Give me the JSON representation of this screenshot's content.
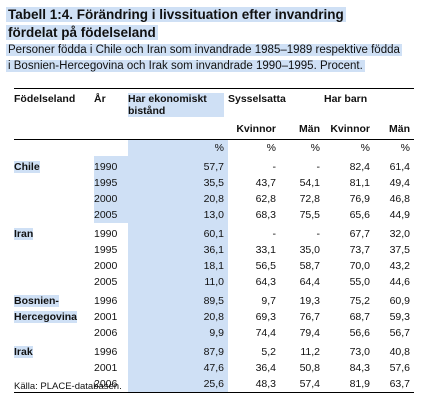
{
  "title_line1": "Tabell 1:4. Förändring i livssituation efter invandring",
  "title_line2": "fördelat på födelseland",
  "subtitle_line1": "Personer födda i Chile och Iran som invandrade 1985–1989 respektive födda",
  "subtitle_line2": "i Bosnien-Hercegovina och Irak som invandrade 1990–1995. Procent.",
  "headers": {
    "country": "Födelseland",
    "year": "År",
    "econ": "Har ekonomiskt bistånd",
    "employed": "Sysselsatta",
    "children": "Har barn",
    "women": "Kvinnor",
    "men": "Män",
    "pct": "%"
  },
  "groups": [
    {
      "name": "Chile",
      "highlight": true,
      "rows": [
        {
          "year": "1990",
          "econ": "57,7",
          "emp_w": "-",
          "emp_m": "-",
          "ch_w": "82,4",
          "ch_m": "61,4"
        },
        {
          "year": "1995",
          "econ": "35,5",
          "emp_w": "43,7",
          "emp_m": "54,1",
          "ch_w": "81,1",
          "ch_m": "49,4"
        },
        {
          "year": "2000",
          "econ": "20,8",
          "emp_w": "62,8",
          "emp_m": "72,8",
          "ch_w": "76,9",
          "ch_m": "46,8"
        },
        {
          "year": "2005",
          "econ": "13,0",
          "emp_w": "68,3",
          "emp_m": "75,5",
          "ch_w": "65,6",
          "ch_m": "44,9"
        }
      ]
    },
    {
      "name": "Iran",
      "highlight": false,
      "rows": [
        {
          "year": "1990",
          "econ": "60,1",
          "emp_w": "-",
          "emp_m": "-",
          "ch_w": "67,7",
          "ch_m": "32,0"
        },
        {
          "year": "1995",
          "econ": "36,1",
          "emp_w": "33,1",
          "emp_m": "35,0",
          "ch_w": "73,7",
          "ch_m": "37,5"
        },
        {
          "year": "2000",
          "econ": "18,1",
          "emp_w": "56,5",
          "emp_m": "58,7",
          "ch_w": "70,0",
          "ch_m": "43,2"
        },
        {
          "year": "2005",
          "econ": "11,0",
          "emp_w": "64,3",
          "emp_m": "64,4",
          "ch_w": "55,0",
          "ch_m": "44,6"
        }
      ]
    },
    {
      "name": "Bosnien-Hercegovina",
      "name_line1": "Bosnien-",
      "name_line2": "Hercegovina",
      "highlight": false,
      "rows": [
        {
          "year": "1996",
          "econ": "89,5",
          "emp_w": "9,7",
          "emp_m": "19,3",
          "ch_w": "75,2",
          "ch_m": "60,9"
        },
        {
          "year": "2001",
          "econ": "20,8",
          "emp_w": "69,3",
          "emp_m": "76,7",
          "ch_w": "68,7",
          "ch_m": "59,3"
        },
        {
          "year": "2006",
          "econ": "9,9",
          "emp_w": "74,4",
          "emp_m": "79,4",
          "ch_w": "56,6",
          "ch_m": "56,7"
        }
      ]
    },
    {
      "name": "Irak",
      "highlight": false,
      "rows": [
        {
          "year": "1996",
          "econ": "87,9",
          "emp_w": "5,2",
          "emp_m": "11,2",
          "ch_w": "73,0",
          "ch_m": "40,8"
        },
        {
          "year": "2001",
          "econ": "47,6",
          "emp_w": "36,4",
          "emp_m": "50,8",
          "ch_w": "84,3",
          "ch_m": "57,6"
        },
        {
          "year": "2006",
          "econ": "25,6",
          "emp_w": "48,3",
          "emp_m": "57,4",
          "ch_w": "81,9",
          "ch_m": "63,7"
        }
      ]
    }
  ],
  "source": "Källa: PLACE-databasen.",
  "colors": {
    "highlight": "#cfe0f5"
  }
}
